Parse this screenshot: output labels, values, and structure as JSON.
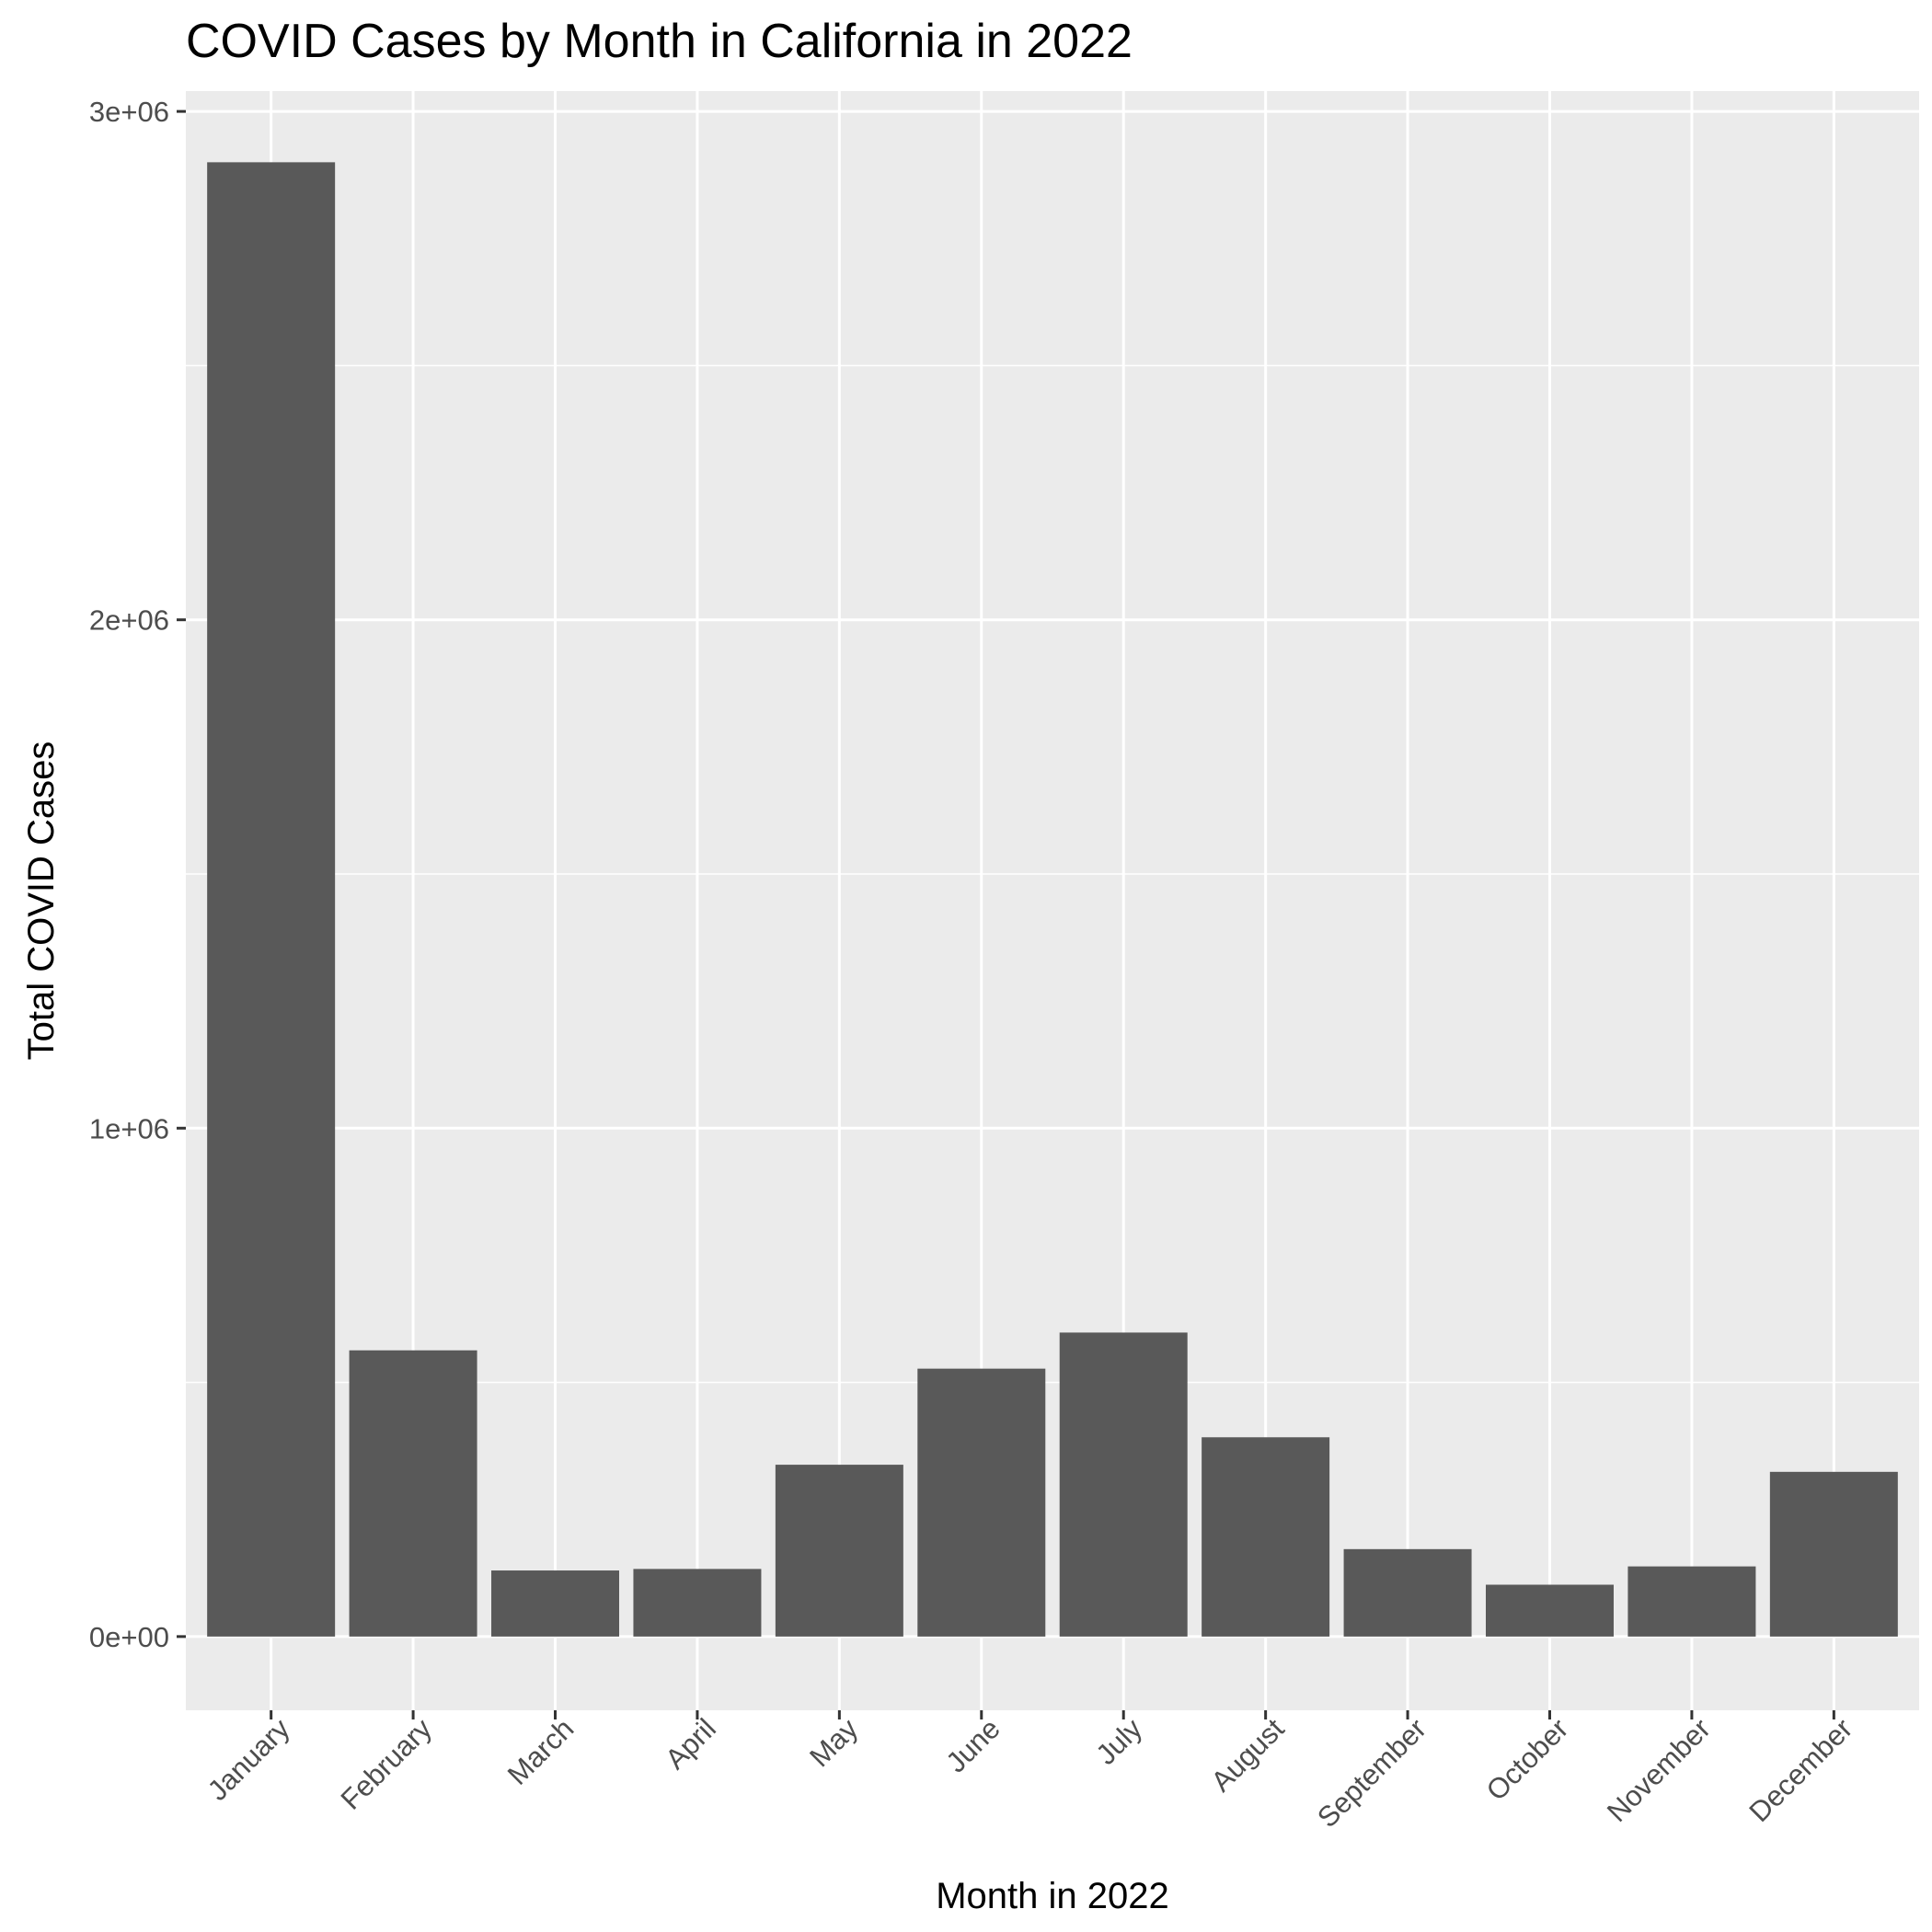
{
  "chart_data": {
    "type": "bar",
    "title": "COVID Cases by Month in California in 2022",
    "xlabel": "Month in 2022",
    "ylabel": "Total COVID Cases",
    "categories": [
      "January",
      "February",
      "March",
      "April",
      "May",
      "June",
      "July",
      "August",
      "September",
      "October",
      "November",
      "December"
    ],
    "values": [
      2900000,
      563000,
      130000,
      133000,
      338000,
      527000,
      598000,
      392000,
      172000,
      102000,
      138000,
      324000
    ],
    "ylim": [
      -145000,
      3040000
    ],
    "yticks": [
      0,
      1000000,
      2000000,
      3000000
    ],
    "ytick_labels": [
      "0e+00",
      "1e+06",
      "2e+06",
      "3e+06"
    ],
    "grid": true,
    "legend": "none",
    "colors": {
      "panel_background": "#ebebeb",
      "grid_major": "#ffffff",
      "grid_minor": "#ffffff",
      "bar_fill": "#595959",
      "tick_mark": "#333333",
      "tick_label": "#4d4d4d"
    }
  }
}
